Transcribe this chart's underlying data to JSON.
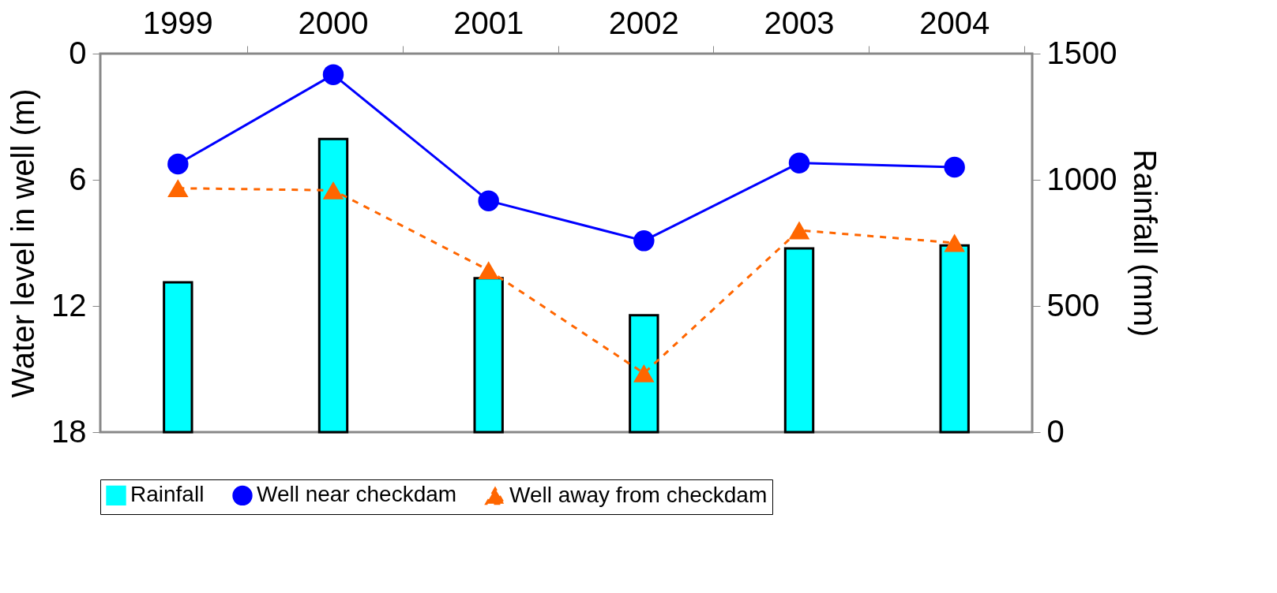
{
  "chart_data": {
    "type": "bar",
    "categories": [
      "1999",
      "2000",
      "2001",
      "2002",
      "2003",
      "2004"
    ],
    "ylabel": "Water level in well (m)",
    "y2label": "Rainfall (mm)",
    "ylim": [
      18,
      0
    ],
    "yticks": [
      0,
      6,
      12,
      18
    ],
    "y2lim": [
      0,
      1500
    ],
    "y2ticks": [
      0,
      500,
      {
        "value": 1000,
        "label": "1000"
      },
      {
        "value": 1500,
        "label": "1500"
      }
    ],
    "legend": "bottom",
    "series": [
      {
        "name": "Rainfall",
        "axis": "y2",
        "color": "#00ffff",
        "values": [
          594,
          1162,
          610,
          463,
          728,
          740
        ]
      },
      {
        "name": "Well near checkdam",
        "type": "line",
        "color": "#0000ff",
        "marker": "circle",
        "line_style": "solid",
        "values": [
          5.25,
          1.0,
          7.0,
          8.9,
          5.2,
          5.4
        ]
      },
      {
        "name": "Well away from checkdam",
        "type": "line",
        "color": "#ff6600",
        "marker": "triangle",
        "line_style": "dashed",
        "values": [
          6.4,
          6.5,
          10.3,
          15.2,
          8.4,
          9.0
        ]
      }
    ]
  }
}
